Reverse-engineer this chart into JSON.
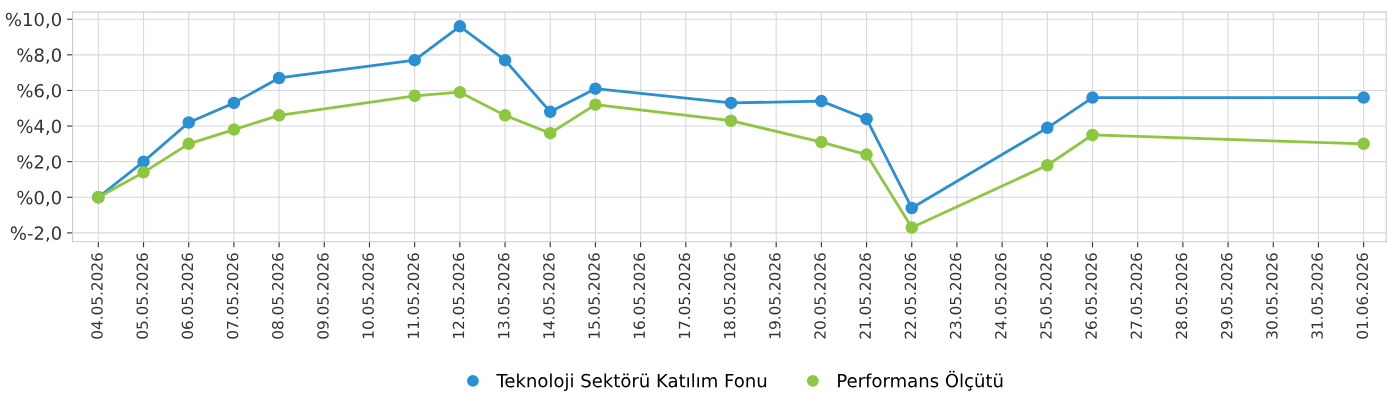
{
  "chart_data": {
    "type": "line",
    "categories": [
      "04.05.2026",
      "05.05.2026",
      "06.05.2026",
      "07.05.2026",
      "08.05.2026",
      "09.05.2026",
      "10.05.2026",
      "11.05.2026",
      "12.05.2026",
      "13.05.2026",
      "14.05.2026",
      "15.05.2026",
      "16.05.2026",
      "17.05.2026",
      "18.05.2026",
      "19.05.2026",
      "20.05.2026",
      "21.05.2026",
      "22.05.2026",
      "23.05.2026",
      "24.05.2026",
      "25.05.2026",
      "26.05.2026",
      "27.05.2026",
      "28.05.2026",
      "29.05.2026",
      "30.05.2026",
      "31.05.2026",
      "01.06.2026"
    ],
    "series": [
      {
        "name": "Teknoloji Sektörü Katılım Fonu",
        "color": "#2a8fd4",
        "values": [
          0.0,
          2.0,
          4.2,
          5.3,
          6.7,
          null,
          null,
          7.7,
          9.6,
          7.7,
          4.8,
          6.1,
          null,
          null,
          5.3,
          null,
          5.4,
          4.4,
          -0.6,
          null,
          null,
          3.9,
          5.6,
          null,
          null,
          null,
          null,
          null,
          5.6
        ]
      },
      {
        "name": "Performans Ölçütü",
        "color": "#8dc63f",
        "values": [
          0.0,
          1.4,
          3.0,
          3.8,
          4.6,
          null,
          null,
          5.7,
          5.9,
          4.6,
          3.6,
          5.2,
          null,
          null,
          4.3,
          null,
          3.1,
          2.4,
          -1.7,
          null,
          null,
          1.8,
          3.5,
          null,
          null,
          null,
          null,
          null,
          3.0
        ]
      }
    ],
    "ylim": [
      -2.5,
      10.4
    ],
    "yticks": [
      {
        "value": -2,
        "label": "%-2,0"
      },
      {
        "value": 0,
        "label": "%0,0"
      },
      {
        "value": 2,
        "label": "%2,0"
      },
      {
        "value": 4,
        "label": "%4,0"
      },
      {
        "value": 6,
        "label": "%6,0"
      },
      {
        "value": 8,
        "label": "%8,0"
      },
      {
        "value": 10,
        "label": "%10,0"
      }
    ],
    "grid": true,
    "legend": "bottom",
    "marker": "circle",
    "line_style": "solid"
  }
}
